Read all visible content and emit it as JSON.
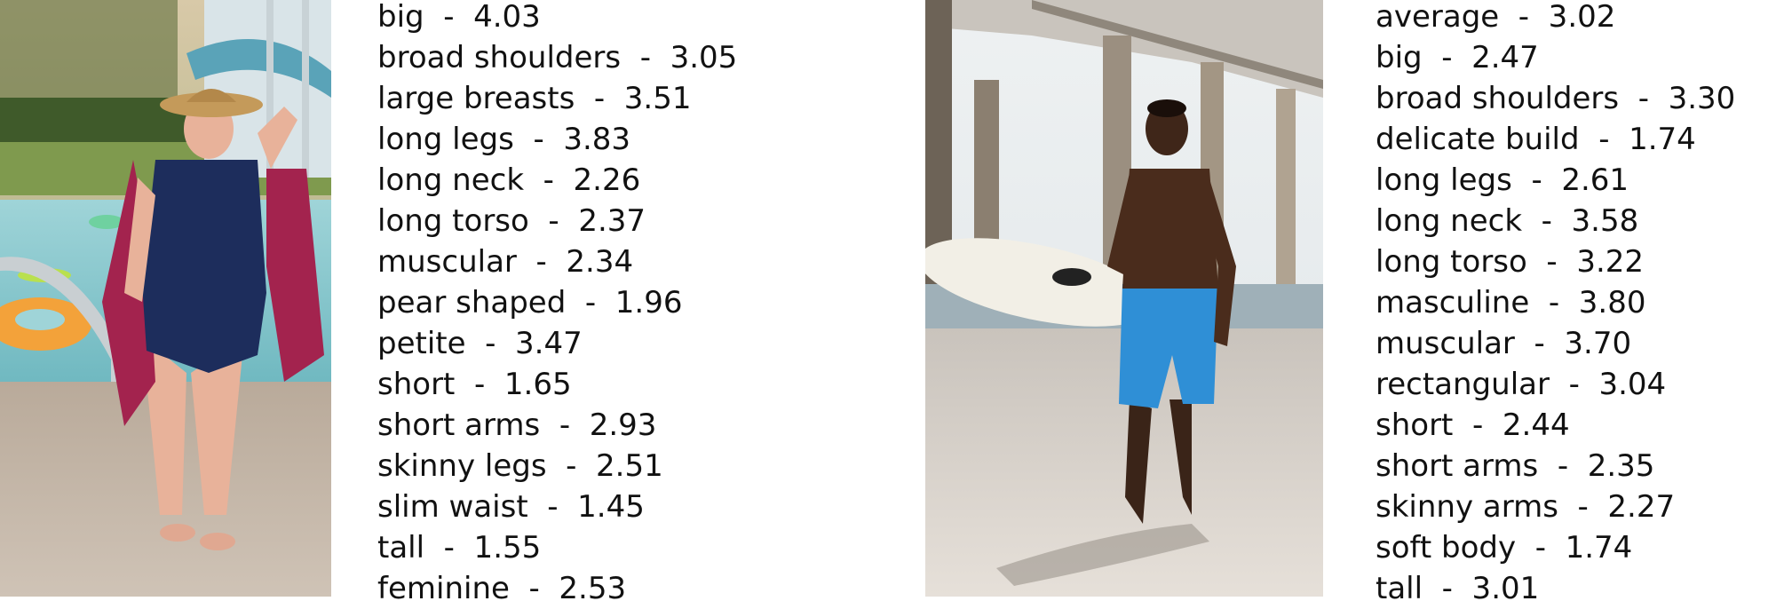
{
  "panels": [
    {
      "photo": {
        "icon": "woman-poolside-photo"
      },
      "attributes": [
        "big  -  4.03",
        "broad shoulders  -  3.05",
        "large breasts  -  3.51",
        "long legs  -  3.83",
        "long neck  -  2.26",
        "long torso  -  2.37",
        "muscular  -  2.34",
        "pear shaped  -  1.96",
        "petite  -  3.47",
        "short  -  1.65",
        "short arms  -  2.93",
        "skinny legs  -  2.51",
        "slim waist  -  1.45",
        "tall  -  1.55",
        "feminine  -  2.53"
      ]
    },
    {
      "photo": {
        "icon": "man-surfboard-beach-photo"
      },
      "attributes": [
        "average  -  3.02",
        "big  -  2.47",
        "broad shoulders  -  3.30",
        "delicate build  -  1.74",
        "long legs  -  2.61",
        "long neck  -  3.58",
        "long torso  -  3.22",
        "masculine  -  3.80",
        "muscular  -  3.70",
        "rectangular  -  3.04",
        "short  -  2.44",
        "short arms  -  2.35",
        "skinny arms  -  2.27",
        "soft body  -  1.74",
        "tall  -  3.01"
      ]
    }
  ]
}
